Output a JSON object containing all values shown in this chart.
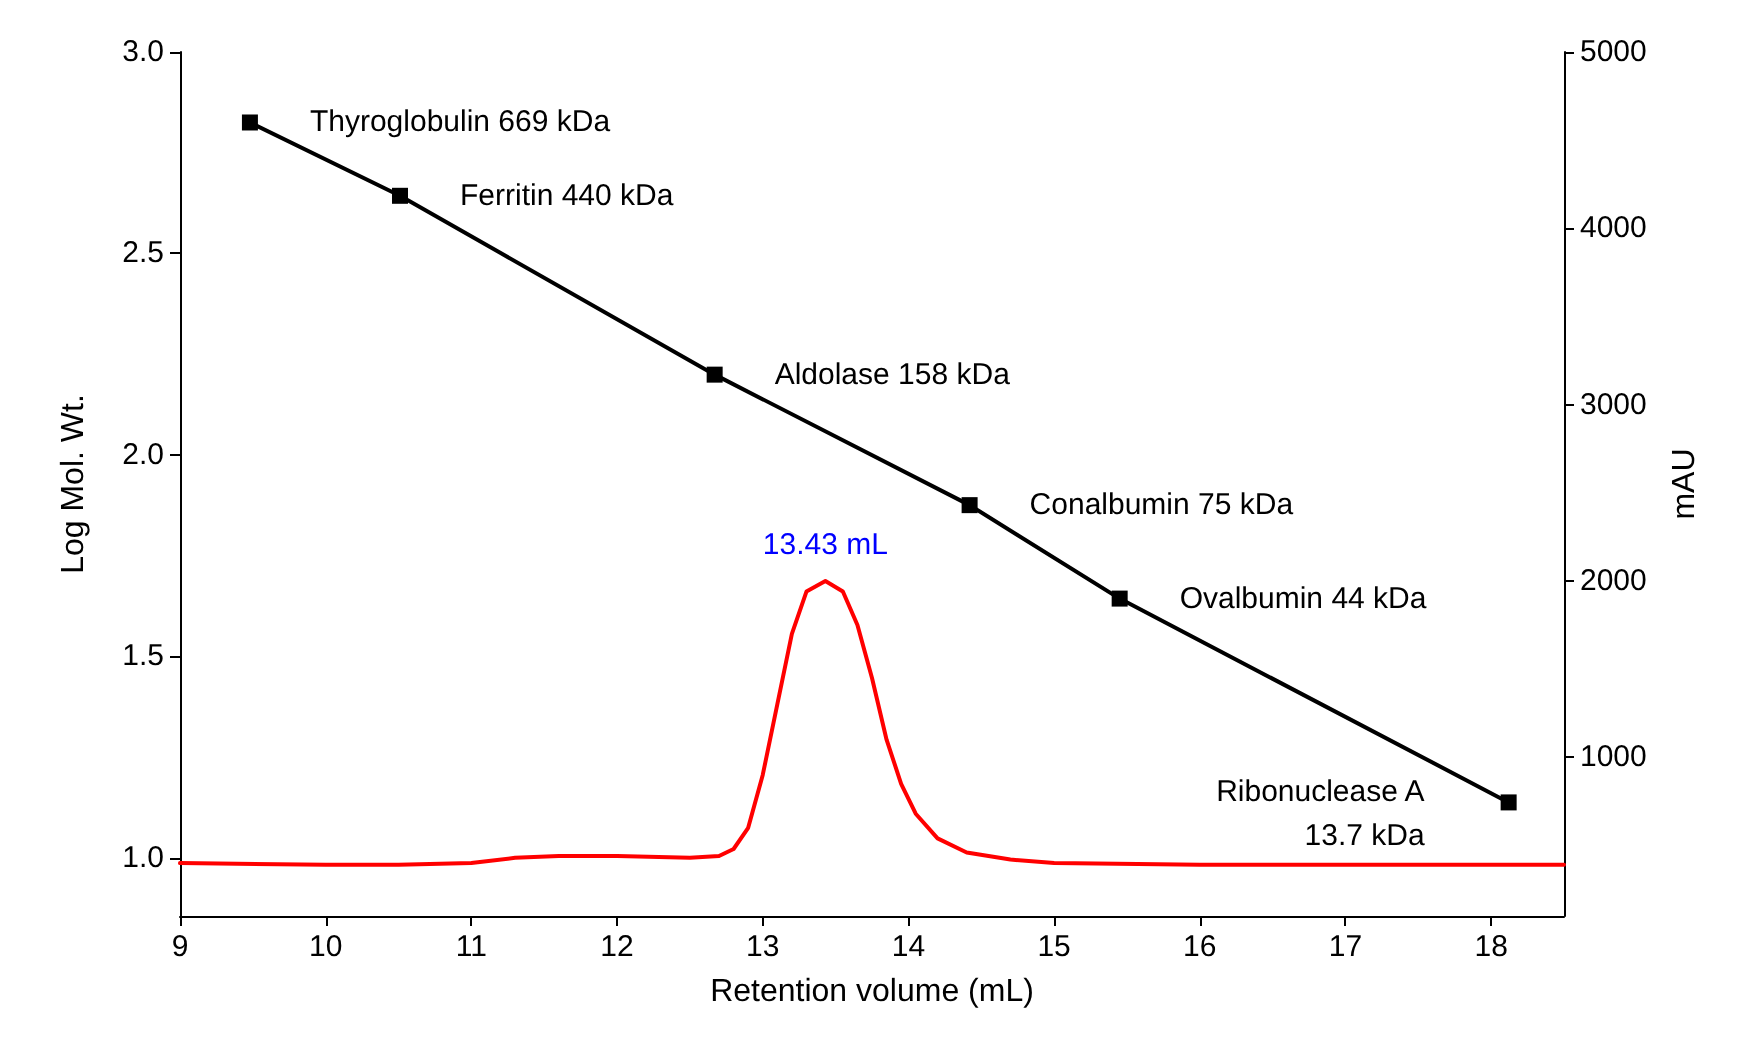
{
  "chart_data": {
    "type": "line",
    "xlabel": "Retention volume (mL)",
    "ylabel": "Log Mol. Wt.",
    "y2label": "mAU",
    "xlim": [
      9,
      18.5
    ],
    "xticks": [
      9,
      10,
      11,
      12,
      13,
      14,
      15,
      16,
      17,
      18
    ],
    "ylim": [
      0.855,
      3.0
    ],
    "yticks": [
      {
        "value": 1,
        "label": "1.0"
      },
      {
        "value": 1.5,
        "label": "1.5"
      },
      {
        "value": 2,
        "label": "2.0"
      },
      {
        "value": 2.5,
        "label": "2.5"
      },
      {
        "value": 3,
        "label": "3.0"
      }
    ],
    "y2lim": [
      100,
      5000
    ],
    "y2ticks": [
      1000,
      2000,
      3000,
      4000,
      5000
    ],
    "series": [
      {
        "color": "#000000",
        "marker": "square",
        "x": [
          9.48,
          10.51,
          12.67,
          14.42,
          15.45,
          18.12
        ],
        "values": [
          2.825,
          2.643,
          2.199,
          1.875,
          1.643,
          1.137
        ]
      },
      {
        "color": "#ff0000",
        "axis": "y2",
        "marker": "none",
        "x": [
          9.0,
          10.0,
          10.5,
          11.0,
          11.3,
          11.6,
          12.0,
          12.5,
          12.7,
          12.8,
          12.9,
          13.0,
          13.1,
          13.2,
          13.3,
          13.43,
          13.55,
          13.65,
          13.75,
          13.85,
          13.95,
          14.05,
          14.2,
          14.4,
          14.7,
          15.0,
          16.0,
          17.0,
          18.0,
          18.5
        ],
        "values": [
          400,
          390,
          390,
          400,
          430,
          440,
          440,
          430,
          440,
          480,
          600,
          900,
          1300,
          1700,
          1940,
          2000,
          1940,
          1750,
          1450,
          1100,
          850,
          680,
          540,
          460,
          420,
          400,
          390,
          390,
          390,
          390
        ]
      }
    ],
    "annotations": [
      {
        "text": "Thyroglobulin 669 kDa",
        "x": 9.48,
        "y": 2.825
      },
      {
        "text": "Ferritin 440 kDa",
        "x": 10.51,
        "y": 2.643
      },
      {
        "text": "Aldolase 158 kDa",
        "x": 12.67,
        "y": 2.199
      },
      {
        "text": "Conalbumin 75 kDa",
        "x": 14.42,
        "y": 1.875
      },
      {
        "text": "Ovalbumin 44 kDa",
        "x": 15.45,
        "y": 1.643
      },
      {
        "text": "Ribonuclease A\n13.7 kDa",
        "x": 18.12,
        "y": 1.137
      },
      "13.43 mL"
    ]
  }
}
